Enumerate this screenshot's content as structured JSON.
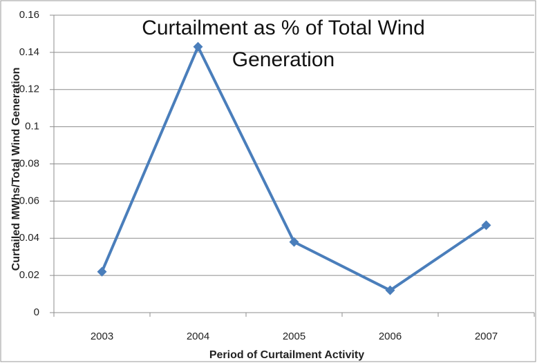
{
  "chart_data": {
    "type": "line",
    "title": "Curtailment as % of Total Wind Generation",
    "x_label": "Period of Curtailment Activity",
    "y_label": "Curtailed MWhs/Total Wind Generation",
    "categories": [
      "2003",
      "2004",
      "2005",
      "2006",
      "2007"
    ],
    "series": [
      {
        "name": "Curtailment",
        "color": "#4a7ebb",
        "values": [
          0.022,
          0.143,
          0.038,
          0.012,
          0.047
        ]
      }
    ],
    "ylim": [
      0,
      0.16
    ],
    "yticks": [
      0,
      0.02,
      0.04,
      0.06,
      0.08,
      0.1,
      0.12,
      0.14,
      0.16
    ],
    "grid": true
  }
}
